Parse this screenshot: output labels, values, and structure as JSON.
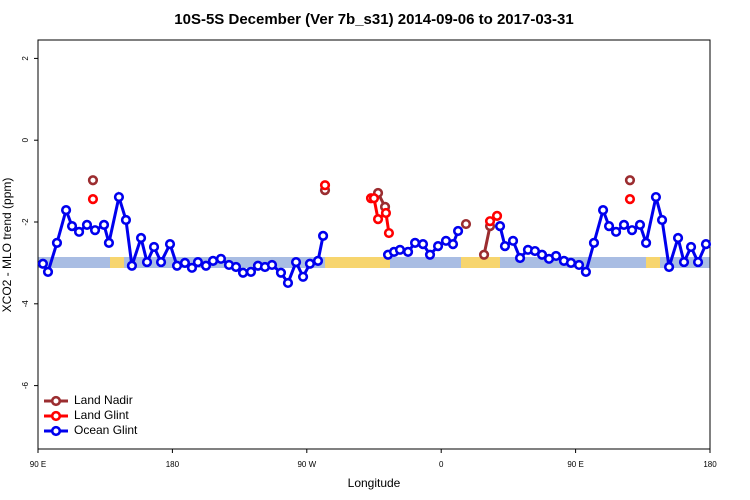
{
  "chart_data": {
    "type": "line",
    "title": "10S-5S December (Ver 7b_s31)   2014-09-06 to 2017-03-31",
    "x_label": "Longitude",
    "y_label": "XCO2 - MLO trend (ppm)",
    "xlim": [
      90,
      540
    ],
    "ylim": [
      -7.55,
      2.45
    ],
    "xticks": [
      {
        "value": 90,
        "label": "90 E"
      },
      180,
      {
        "value": 270,
        "label": "90 W"
      },
      {
        "value": 360,
        "label": "0"
      },
      {
        "value": 450,
        "label": "90 E"
      },
      {
        "value": 540,
        "label": "180"
      }
    ],
    "yticks": [
      -6,
      -4,
      -2,
      0,
      2
    ],
    "legend": "bottomleft",
    "series": [
      {
        "name": "Land Nadir",
        "color": "#9b2d30",
        "x": [
          126.8,
          200,
          282.2,
          300,
          317.7,
          322.4,
          350,
          376.6,
          383,
          388.7,
          392.7,
          440,
          486.4
        ],
        "values": [
          -0.98,
          null,
          -1.22,
          null,
          -1.29,
          -1.63,
          null,
          -2.05,
          null,
          -2.8,
          -2.1,
          null,
          -0.98
        ]
      },
      {
        "name": "Land Glint",
        "color": "#ff0000",
        "x": [
          126.8,
          200,
          282.2,
          300,
          313.0,
          315.0,
          317.7,
          323.0,
          325.0,
          360,
          392.7,
          397.4,
          440,
          486.4
        ],
        "values": [
          -1.44,
          null,
          -1.1,
          null,
          -1.42,
          -1.42,
          -1.93,
          -1.78,
          -2.27,
          null,
          -1.98,
          -1.85,
          null,
          -1.44
        ]
      },
      {
        "name": "Ocean Glint",
        "color": "#0000ee",
        "x": [
          93.3,
          96.7,
          102.7,
          108.8,
          112.8,
          117.5,
          122.8,
          128.2,
          134.2,
          137.5,
          144.2,
          148.9,
          152.9,
          159.0,
          163.0,
          167.7,
          172.4,
          178.4,
          183.1,
          188.4,
          193.1,
          197.1,
          202.5,
          207.2,
          212.5,
          217.9,
          222.6,
          227.3,
          232.6,
          237.3,
          242.0,
          246.7,
          252.7,
          257.4,
          262.8,
          267.5,
          272.1,
          277.5,
          280.9,
          300,
          324.4,
          328.4,
          332.4,
          337.8,
          342.5,
          347.8,
          352.5,
          357.9,
          363.2,
          367.9,
          371.3,
          385,
          399.4,
          402.7,
          408.1,
          412.8,
          418.1,
          422.8,
          427.5,
          432.2,
          436.9,
          442.2,
          446.9,
          452.3,
          456.9,
          462.3,
          468.4,
          472.4,
          477.1,
          482.4,
          487.8,
          493.1,
          497.2,
          503.8,
          507.9,
          512.6,
          518.6,
          522.6,
          527.3,
          532.0,
          537.3
        ],
        "values": [
          -3.02,
          -3.22,
          -2.51,
          -1.71,
          -2.1,
          -2.24,
          -2.07,
          -2.2,
          -2.07,
          -2.51,
          -1.39,
          -1.95,
          -3.07,
          -2.39,
          -2.98,
          -2.61,
          -2.98,
          -2.54,
          -3.07,
          -3.0,
          -3.12,
          -2.98,
          -3.07,
          -2.95,
          -2.9,
          -3.05,
          -3.1,
          -3.24,
          -3.22,
          -3.07,
          -3.1,
          -3.05,
          -3.24,
          -3.49,
          -2.98,
          -3.34,
          -3.02,
          -2.95,
          -2.34,
          null,
          -2.8,
          -2.73,
          -2.68,
          -2.73,
          -2.51,
          -2.54,
          -2.8,
          -2.59,
          -2.46,
          -2.54,
          -2.22,
          null,
          -2.1,
          -2.59,
          -2.46,
          -2.88,
          -2.68,
          -2.71,
          -2.8,
          -2.9,
          -2.83,
          -2.95,
          -3.0,
          -3.05,
          -3.22,
          -2.51,
          -1.71,
          -2.1,
          -2.24,
          -2.07,
          -2.2,
          -2.07,
          -2.51,
          -1.39,
          -1.95,
          -3.1,
          -2.39,
          -2.98,
          -2.61,
          -2.98,
          -2.54
        ]
      }
    ]
  }
}
